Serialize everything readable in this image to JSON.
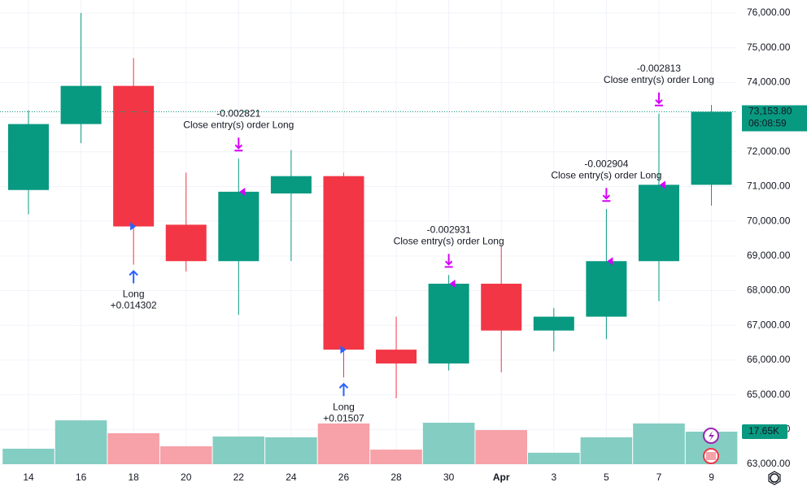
{
  "chart_data": {
    "type": "candlestick",
    "categories": [
      "14",
      "16",
      "18",
      "20",
      "22",
      "24",
      "26",
      "28",
      "30",
      "Apr",
      "3",
      "5",
      "7",
      "9"
    ],
    "open": [
      70900,
      72800,
      73900,
      69900,
      68850,
      70800,
      71300,
      66300,
      65900,
      68200,
      66850,
      67250,
      68850,
      71050
    ],
    "high": [
      73200,
      76000,
      74700,
      71400,
      71800,
      72050,
      71400,
      67250,
      68450,
      69300,
      67500,
      70350,
      73100,
      73350
    ],
    "low": [
      70200,
      72250,
      68750,
      68550,
      67300,
      68850,
      65500,
      64900,
      65700,
      65650,
      66250,
      66600,
      67700,
      70450
    ],
    "close": [
      72800,
      73900,
      69850,
      68850,
      70850,
      71300,
      66300,
      65900,
      68200,
      66850,
      67250,
      68850,
      71050,
      73153.8
    ],
    "up_color": "#089981",
    "down_color": "#f23645",
    "volume": {
      "values": [
        8.4,
        23.8,
        16.8,
        9.7,
        15.0,
        14.6,
        22.1,
        7.9,
        22.5,
        18.5,
        6.2,
        14.6,
        22.1,
        17.65
      ],
      "value_labels": [
        null,
        null,
        null,
        null,
        null,
        null,
        null,
        null,
        null,
        null,
        null,
        null,
        null,
        "17.65K"
      ],
      "up_color": "#84cdc3",
      "down_color": "#f7a1a8"
    },
    "last_price": {
      "value": 73153.8,
      "label": "73,153.80"
    },
    "countdown": "06:08:59",
    "ylim": [
      63000,
      76000
    ],
    "yticks": [
      {
        "value": 63000,
        "label": "63,000.00"
      },
      {
        "value": 64000,
        "label": "64,000.00"
      },
      {
        "value": 65000,
        "label": "65,000.00"
      },
      {
        "value": 66000,
        "label": "66,000.00"
      },
      {
        "value": 67000,
        "label": "67,000.00"
      },
      {
        "value": 68000,
        "label": "68,000.00"
      },
      {
        "value": 69000,
        "label": "69,000.00"
      },
      {
        "value": 70000,
        "label": "70,000.00"
      },
      {
        "value": 71000,
        "label": "71,000.00"
      },
      {
        "value": 72000,
        "label": "72,000.00"
      },
      {
        "value": 73000,
        "label": "73,000.00"
      },
      {
        "value": 74000,
        "label": "74,000.00"
      },
      {
        "value": 75000,
        "label": "75,000.00"
      },
      {
        "value": 76000,
        "label": "76,000.00"
      }
    ],
    "grid": true,
    "signals": [
      {
        "at": 2,
        "side": "long",
        "text": "Long",
        "pnl": {
          "value": 0.014302,
          "label": "+0.014302"
        }
      },
      {
        "at": 4,
        "side": "close",
        "text": "Close entry(s) order Long",
        "pnl": -0.002821
      },
      {
        "at": 6,
        "side": "long",
        "text": "Long",
        "pnl": {
          "value": 0.01507,
          "label": "+0.01507"
        }
      },
      {
        "at": 8,
        "side": "close",
        "text": "Close entry(s) order Long",
        "pnl": -0.002931
      },
      {
        "at": 11,
        "side": "close",
        "text": "Close entry(s) order Long",
        "pnl": -0.002904
      },
      {
        "at": 12,
        "side": "close",
        "text": "Close entry(s) order Long",
        "pnl": -0.002813
      }
    ]
  }
}
